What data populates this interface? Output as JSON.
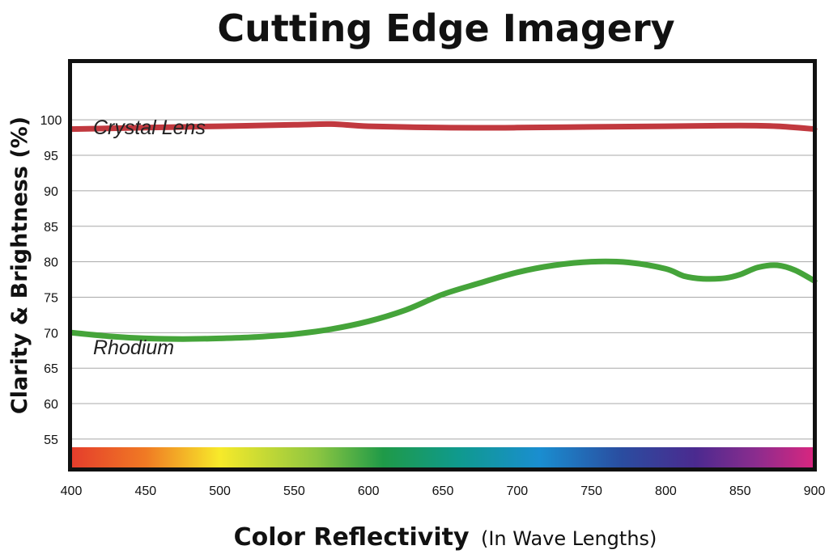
{
  "chart_data": {
    "type": "line",
    "title": "Cutting Edge Imagery",
    "ylabel": "Clarity & Brightness (%)",
    "xlabel": "Color Reflectivity",
    "xlabel_note": "(In Wave Lengths)",
    "xlim": [
      400,
      900
    ],
    "ylim": [
      51,
      108
    ],
    "x_ticks": [
      400,
      450,
      500,
      550,
      600,
      650,
      700,
      750,
      800,
      850,
      900
    ],
    "y_ticks": [
      55,
      60,
      65,
      70,
      75,
      80,
      85,
      90,
      95,
      100
    ],
    "grid": true,
    "spectrum_bar": true,
    "series": [
      {
        "name": "Crystal Lens",
        "color": "#c1393f",
        "x": [
          400,
          450,
          500,
          550,
          575,
          600,
          650,
          700,
          750,
          800,
          850,
          875,
          900
        ],
        "values": [
          98.7,
          98.9,
          99.1,
          99.3,
          99.4,
          99.1,
          98.9,
          98.9,
          99.0,
          99.1,
          99.2,
          99.1,
          98.7
        ]
      },
      {
        "name": "Rhodium",
        "color": "#45a43a",
        "x": [
          400,
          425,
          450,
          475,
          500,
          525,
          550,
          575,
          600,
          625,
          650,
          675,
          700,
          725,
          750,
          775,
          800,
          812,
          825,
          840,
          850,
          862,
          875,
          887,
          900
        ],
        "values": [
          70.0,
          69.5,
          69.2,
          69.1,
          69.2,
          69.4,
          69.8,
          70.5,
          71.6,
          73.2,
          75.4,
          77.0,
          78.5,
          79.5,
          80.0,
          79.9,
          79.0,
          78.0,
          77.6,
          77.7,
          78.2,
          79.2,
          79.5,
          78.8,
          77.3
        ]
      }
    ]
  }
}
